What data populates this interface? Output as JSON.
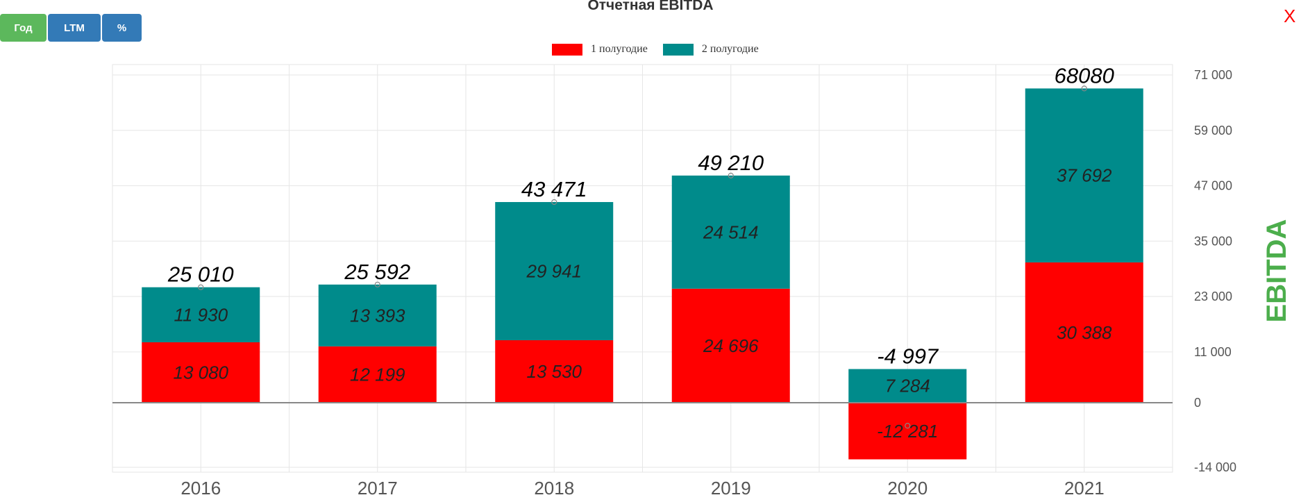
{
  "toolbar": {
    "year_label": "Год",
    "ltm_label": "LTM",
    "pct_label": "%"
  },
  "close_label": "X",
  "colors": {
    "h1": "#ff0000",
    "h2": "#008b8b",
    "total_label": "#000000",
    "axis_title": "#4cae4c",
    "grid": "#e6e6e6",
    "zero_line": "#888888"
  },
  "chart_data": {
    "type": "bar",
    "stacked": true,
    "title": "Отчетная EBITDA",
    "ylabel": "EBITDA",
    "ylim": [
      -14000,
      71000
    ],
    "yticks": [
      -14000,
      0,
      11000,
      23000,
      35000,
      47000,
      59000,
      71000
    ],
    "ytick_labels": [
      "-14 000",
      "0",
      "11 000",
      "23 000",
      "35 000",
      "47 000",
      "59 000",
      "71 000"
    ],
    "y_axis_side": "right",
    "grid": true,
    "legend_position": "top-center",
    "categories": [
      "2016",
      "2017",
      "2018",
      "2019",
      "2020",
      "2021"
    ],
    "series": [
      {
        "name": "1 полугодие",
        "values": [
          13080,
          12199,
          13530,
          24696,
          -12281,
          30388
        ],
        "labels": [
          "13 080",
          "12 199",
          "13 530",
          "24 696",
          "-12 281",
          "30 388"
        ]
      },
      {
        "name": "2 полугодие",
        "values": [
          11930,
          13393,
          29941,
          24514,
          7284,
          37692
        ],
        "labels": [
          "11 930",
          "13 393",
          "29 941",
          "24 514",
          "7 284",
          "37 692"
        ]
      }
    ],
    "totals": [
      25010,
      25592,
      43471,
      49210,
      -4997,
      68080
    ],
    "total_labels": [
      "25 010",
      "25 592",
      "43 471",
      "49 210",
      "-4 997",
      "68080"
    ]
  }
}
